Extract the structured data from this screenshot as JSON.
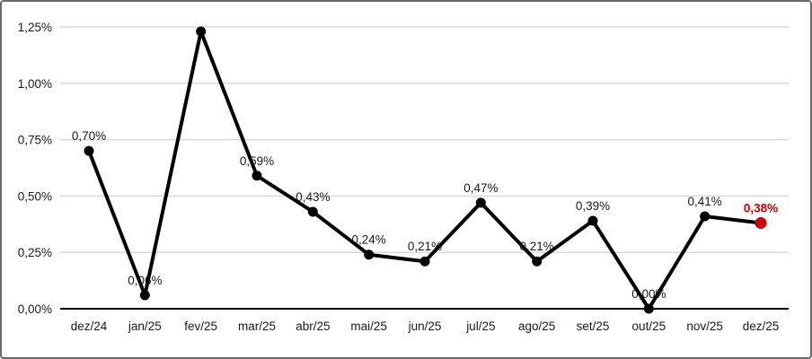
{
  "chart_data": {
    "type": "line",
    "title": "",
    "xlabel": "",
    "ylabel": "",
    "categories": [
      "dez/24",
      "jan/25",
      "fev/25",
      "mar/25",
      "abr/25",
      "mai/25",
      "jun/25",
      "jul/25",
      "ago/25",
      "set/25",
      "out/25",
      "nov/25",
      "dez/25"
    ],
    "values": [
      0.7,
      0.06,
      1.23,
      0.59,
      0.43,
      0.24,
      0.21,
      0.47,
      0.21,
      0.39,
      0.0,
      0.41,
      0.38
    ],
    "point_labels": [
      "0,70%",
      "0,06%",
      "",
      "0,59%",
      "0,43%",
      "0,24%",
      "0,21%",
      "0,47%",
      "0,21%",
      "0,39%",
      "0,00%",
      "0,41%",
      "0,38%"
    ],
    "highlight_index": 12,
    "ylim": [
      0,
      1.25
    ],
    "yticks": [
      {
        "value": 0.0,
        "label": "0,00%"
      },
      {
        "value": 0.25,
        "label": "0,25%"
      },
      {
        "value": 0.5,
        "label": "0,50%"
      },
      {
        "value": 0.75,
        "label": "0,75%"
      },
      {
        "value": 1.0,
        "label": "1,00%"
      },
      {
        "value": 1.25,
        "label": "1,25%"
      }
    ],
    "grid": true,
    "legend": "none",
    "colors": {
      "line": "#000000",
      "marker": "#000000",
      "highlight": "#CC0000",
      "gridline": "#D9D9D9",
      "axis": "#000000",
      "text": "#1A1A1A",
      "frame_border": "#6B6B6B",
      "background": "#FFFFFF"
    }
  }
}
